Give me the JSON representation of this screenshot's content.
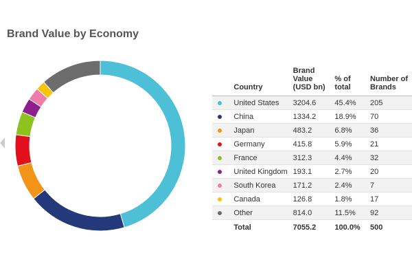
{
  "chart_data": {
    "type": "pie",
    "title": "Brand Value by Economy",
    "table_headers": {
      "country": "Country",
      "brand_value": "Brand Value (USD bn)",
      "pct": "% of total",
      "number": "Number of Brands"
    },
    "rows": [
      {
        "country": "United States",
        "value": "3204.6",
        "pct": "45.4%",
        "brands": "205",
        "color": "#4dbfd6"
      },
      {
        "country": "China",
        "value": "1334.2",
        "pct": "18.9%",
        "brands": "70",
        "color": "#24397a"
      },
      {
        "country": "Japan",
        "value": "483.2",
        "pct": "6.8%",
        "brands": "36",
        "color": "#f39419"
      },
      {
        "country": "Germany",
        "value": "415.8",
        "pct": "5.9%",
        "brands": "21",
        "color": "#e2101d"
      },
      {
        "country": "France",
        "value": "312.3",
        "pct": "4.4%",
        "brands": "32",
        "color": "#8dc21f"
      },
      {
        "country": "United Kingdom",
        "value": "193.1",
        "pct": "2.7%",
        "brands": "20",
        "color": "#8e1f8c"
      },
      {
        "country": "South Korea",
        "value": "171.2",
        "pct": "2.4%",
        "brands": "7",
        "color": "#ee7ea8"
      },
      {
        "country": "Canada",
        "value": "126.8",
        "pct": "1.8%",
        "brands": "17",
        "color": "#fcc30b"
      },
      {
        "country": "Other",
        "value": "814.0",
        "pct": "11.5%",
        "brands": "92",
        "color": "#6c6c6c"
      }
    ],
    "total": {
      "label": "Total",
      "value": "7055.2",
      "pct": "100.0%",
      "brands": "500"
    }
  }
}
